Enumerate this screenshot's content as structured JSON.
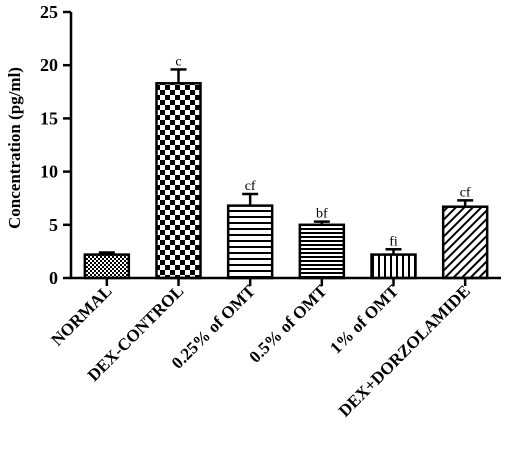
{
  "chart_data": {
    "type": "bar",
    "ylabel": "Concentration (pg/ml)",
    "xlabel": "",
    "title": "",
    "ylim": [
      0,
      25
    ],
    "yticks": [
      0,
      5,
      10,
      15,
      20,
      25
    ],
    "categories": [
      "NORMAL",
      "DEX-CONTROL",
      "0.25% of OMT",
      "0.5% of OMT",
      "1% of OMT",
      "DEX+DORZOLAMIDE"
    ],
    "values": [
      2.2,
      18.3,
      6.8,
      5.0,
      2.2,
      6.7
    ],
    "errors": [
      0.2,
      1.3,
      1.1,
      0.3,
      0.5,
      0.6
    ],
    "significance": [
      "",
      "c",
      "cf",
      "bf",
      "fi",
      "cf"
    ],
    "patterns": [
      "crosshatch-fine",
      "checkerboard",
      "horizontal-lines",
      "horizontal-lines-dense",
      "vertical-lines",
      "diagonal-lines"
    ],
    "grid": false,
    "legend": "none"
  }
}
